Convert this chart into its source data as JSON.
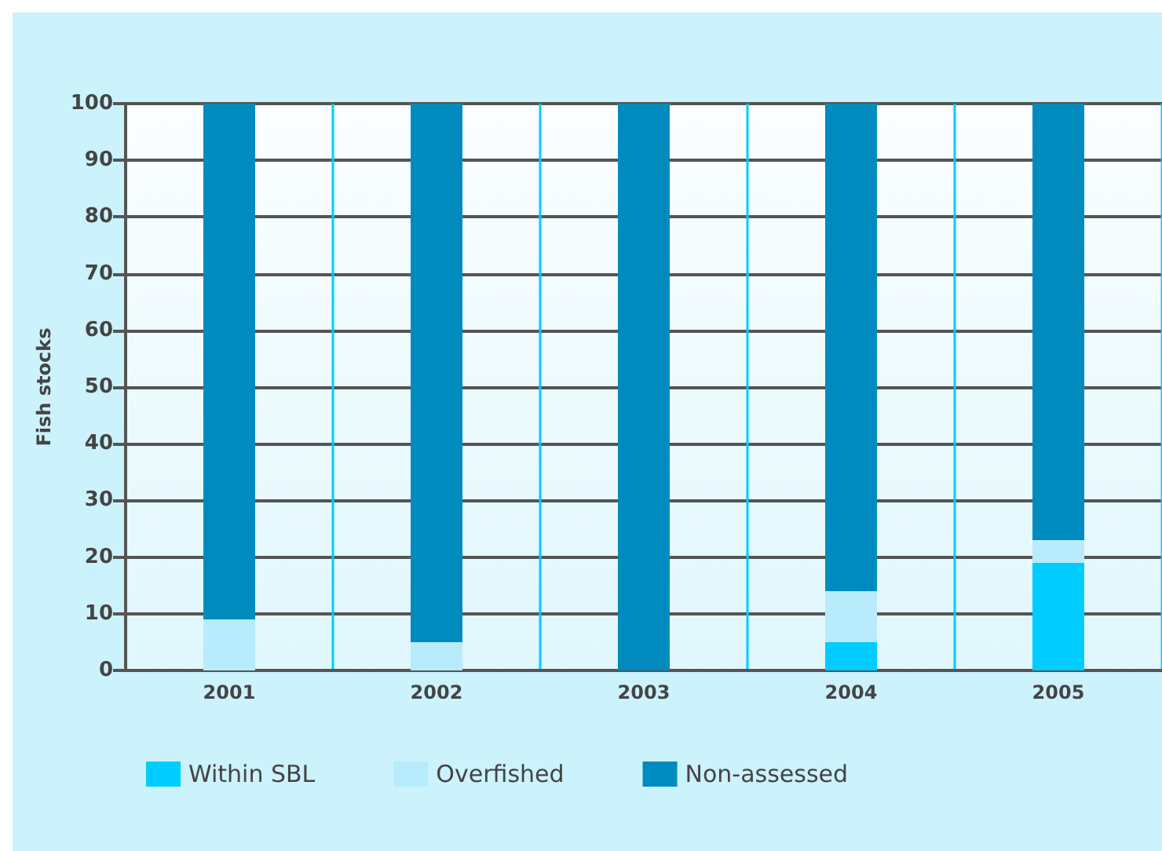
{
  "chart_data": {
    "type": "bar",
    "stacked": true,
    "ylabel": "Fish stocks",
    "categories": [
      "2001",
      "2002",
      "2003",
      "2004",
      "2005"
    ],
    "series": [
      {
        "name": "Within SBL",
        "color": "#00ccff",
        "values": [
          0,
          0,
          0,
          5,
          19
        ]
      },
      {
        "name": "Overfished",
        "color": "#b8ecfc",
        "values": [
          9,
          5,
          0,
          9,
          4
        ]
      },
      {
        "name": "Non-assessed",
        "color": "#008bbf",
        "values": [
          91,
          95,
          100,
          86,
          77
        ]
      }
    ],
    "ylim": [
      0,
      100
    ],
    "yticks": [
      0,
      10,
      20,
      30,
      40,
      50,
      60,
      70,
      80,
      90,
      100
    ],
    "grid": true,
    "legend": "bottom"
  }
}
